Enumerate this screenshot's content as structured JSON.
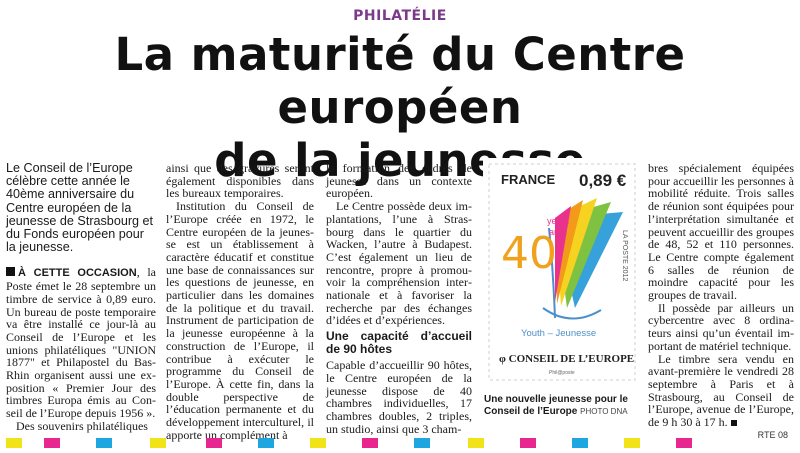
{
  "kicker": "PHILATÉLIE",
  "title_line1": "La maturité du Centre européen",
  "title_line2": "de la jeunesse",
  "col1": {
    "lead": "Le Conseil de l’Europe célè­bre cette année le 40ème anniversaire du Centre euro­péen de la jeunesse de Strasbourg et du Fonds européen pour la jeunesse.",
    "p1_kicker": "À CETTE OCCASION",
    "p1": ", la Poste émet le 28 septembre un tim­bre de service à 0,89 euro. Un bureau de poste temporaire va être installé ce jour-là au Conseil de l’Europe et les unions philatéliques \"UNION 1877\" et Philapostel du Bas-Rhin organisent aussi une ex­position « Premier Jour des timbres Europa émis au Con­seil de l’Europe depuis 1956 ».",
    "p2": "Des souvenirs philatéliques"
  },
  "col2": {
    "p1": "ainsi que des gravures seront également disponibles dans les bureaux temporaires.",
    "p2": "Institution du Conseil de l’Europe créée en 1972, le Centre européen de la jeunes­se est un établissement à caractère éducatif et constitue une base de connaissances sur les questions de jeunesse, en particulier dans les do­maines de la politique et du travail. Instrument de parti­cipation de la jeunesse euro­péenne à la construction de l’Europe, il contribue à exé­cuter le programme du Con­seil de l’Europe. À cette fin, dans la double perspective de l’éducation permanente et du développement interculturel, il apporte un complément à"
  },
  "col3": {
    "p1": "la formation des cadres de jeunesse dans un contexte européen.",
    "p2": "Le Centre possède deux im­plantations, l’une à Stras­bourg dans le quartier du Wacken, l’autre à Budapest. C’est également un lieu de rencontre, propre à promou­voir la compréhension inter­nationale et à favoriser la recherche par des échanges d’idées et d’expériences.",
    "subhead": "Une capacité d’accueil de 90 hôtes",
    "p3": "Capable d’accueillir 90 hô­tes, le Centre européen de la jeunesse dispose de 40 chambres individuelles, 17 chambres doubles, 2 triples, un studio, ainsi que 3 cham-"
  },
  "col4": {
    "p1": "bres spécialement équipées pour accueillir les personnes à mobilité réduite. Trois sal­les de réunion sont équipées pour l’interprétation simul­tanée et peuvent accueillir des groupes de 48, 52 et 110 personnes. Le Centre compte également 6 salles de ré­union de moindre capacité pour les groupes de travail.",
    "p2": "Il possède par ailleurs un cybercentre avec 8 ordina­teurs ainsi qu’un éventail im­portant de matériel techni­que.",
    "p3": "Le timbre sera vendu en avant-première le vendredi 28 septembre à Paris et à Strasbourg, au Conseil de l’Europe, avenue de l’Europe, de 9 h 30 à 17 h."
  },
  "stamp": {
    "country": "FRANCE",
    "value": "0,89 €",
    "number": "40",
    "years": "years",
    "ans": "ans",
    "edge": "LA POSTE 2012",
    "youth": "Youth – Jeunesse",
    "org": "CONSEIL DE L’EUROPE",
    "printer": "Phil@poste"
  },
  "caption": {
    "text": "Une nouvelle jeunesse pour le Conseil de l’Europe",
    "credit": "PHOTO DNA"
  },
  "footer": "RTE 08",
  "colors": {
    "kicker": "#7b3a8a",
    "registration": [
      "#f2e21a",
      "#e8268f",
      "#1ea6e0",
      "#f2e21a",
      "#e8268f",
      "#1ea6e0"
    ]
  }
}
